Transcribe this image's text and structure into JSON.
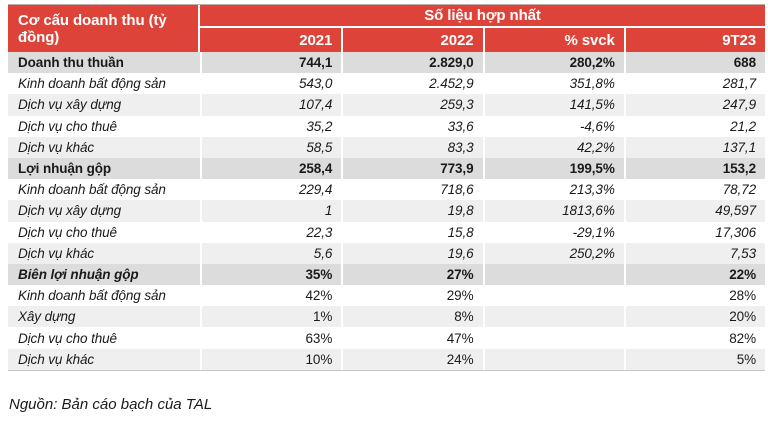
{
  "colors": {
    "accent_red": "#de433a",
    "section_row_bg": "#dcdcdc",
    "stripe_row_bg": "#efefef",
    "header_text": "#ffffff",
    "body_text": "#1a1a1a"
  },
  "table": {
    "corner_label": "Cơ cấu doanh thu (tỷ đồng)",
    "group_header": "Số liệu hợp nhất",
    "columns": [
      "2021",
      "2022",
      "% svck",
      "9T23"
    ],
    "rows": [
      {
        "label": "Doanh thu thuần",
        "values": [
          "744,1",
          "2.829,0",
          "280,2%",
          "688"
        ]
      },
      {
        "label": "Kinh doanh bất động sản",
        "values": [
          "543,0",
          "2.452,9",
          "351,8%",
          "281,7"
        ]
      },
      {
        "label": "Dịch vụ xây dựng",
        "values": [
          "107,4",
          "259,3",
          "141,5%",
          "247,9"
        ]
      },
      {
        "label": "Dịch vụ cho thuê",
        "values": [
          "35,2",
          "33,6",
          "-4,6%",
          "21,2"
        ]
      },
      {
        "label": "Dịch vụ khác",
        "values": [
          "58,5",
          "83,3",
          "42,2%",
          "137,1"
        ]
      },
      {
        "label": "Lợi nhuận gộp",
        "values": [
          "258,4",
          "773,9",
          "199,5%",
          "153,2"
        ]
      },
      {
        "label": "Kinh doanh bất động sản",
        "values": [
          "229,4",
          "718,6",
          "213,3%",
          "78,72"
        ]
      },
      {
        "label": "Dịch vụ xây dựng",
        "values": [
          "1",
          "19,8",
          "1813,6%",
          "49,597"
        ]
      },
      {
        "label": "Dịch vụ cho thuê",
        "values": [
          "22,3",
          "15,8",
          "-29,1%",
          "17,306"
        ]
      },
      {
        "label": "Dịch vụ khác",
        "values": [
          "5,6",
          "19,6",
          "250,2%",
          "7,53"
        ]
      },
      {
        "label": "Biên lợi nhuận gộp",
        "values": [
          "35%",
          "27%",
          "",
          "22%"
        ]
      },
      {
        "label": "Kinh doanh bất động sản",
        "values": [
          "42%",
          "29%",
          "",
          "28%"
        ]
      },
      {
        "label": "Xây dựng",
        "values": [
          "1%",
          "8%",
          "",
          "20%"
        ]
      },
      {
        "label": "Dịch vụ cho thuê",
        "values": [
          "63%",
          "47%",
          "",
          "82%"
        ]
      },
      {
        "label": "Dịch vụ khác",
        "values": [
          "10%",
          "24%",
          "",
          "5%"
        ]
      }
    ]
  },
  "footer": {
    "source": "Nguồn: Bản cáo bạch của TAL"
  }
}
